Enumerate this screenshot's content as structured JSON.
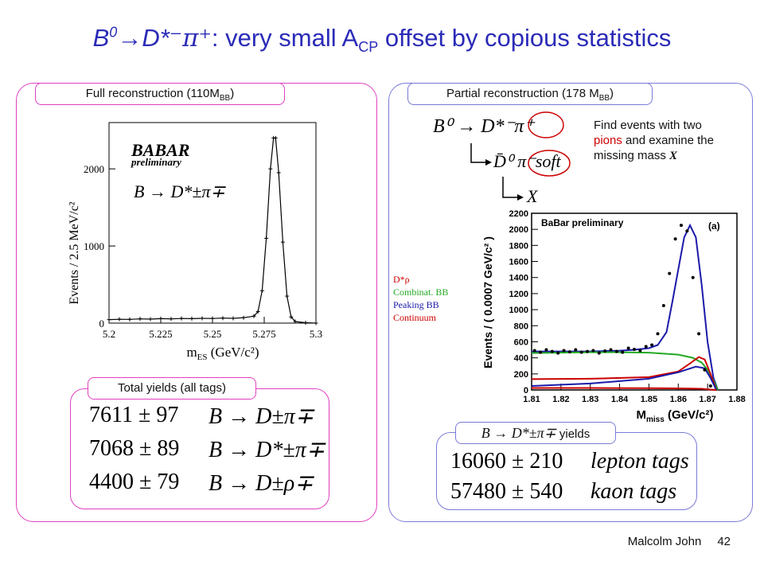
{
  "title": {
    "prefix": "B",
    "prefix_sup": "0",
    "arrow": "→D*",
    "pions": "⁻π⁺",
    "rest": ": very small A",
    "sub": "CP",
    "tail": " offset by copious statistics"
  },
  "left_panel": {
    "tab": "Full reconstruction (110M",
    "tab_sub": "BB",
    "tab_end": ")",
    "chart": {
      "chart_data": {
        "type": "line",
        "xlabel": "m",
        "xlabel_sub": "ES",
        "xlabel_unit": " (GeV/c²)",
        "ylabel": "Events / 2.5 MeV/c²",
        "xlim": [
          5.2,
          5.3
        ],
        "ylim": [
          0,
          2600
        ],
        "xticks": [
          "5.2",
          "5.225",
          "5.25",
          "5.275",
          "5.3"
        ],
        "yticks": [
          "0",
          "1000",
          "2000"
        ],
        "x": [
          5.2,
          5.205,
          5.21,
          5.215,
          5.22,
          5.225,
          5.23,
          5.235,
          5.24,
          5.245,
          5.25,
          5.255,
          5.26,
          5.265,
          5.27,
          5.272,
          5.274,
          5.276,
          5.278,
          5.2795,
          5.2805,
          5.282,
          5.284,
          5.286,
          5.288,
          5.29,
          5.295,
          5.3
        ],
        "y": [
          45,
          50,
          48,
          55,
          52,
          58,
          55,
          60,
          58,
          62,
          60,
          65,
          62,
          70,
          90,
          150,
          420,
          1100,
          2000,
          2400,
          2400,
          1950,
          1050,
          350,
          80,
          20,
          5,
          0
        ]
      },
      "logo": "BABAR",
      "logo_sub": "preliminary",
      "decay": "B → D*±π∓"
    }
  },
  "left_yields": {
    "tab": "Total yields (all tags)",
    "rows": [
      {
        "value": "7611 ± 97",
        "decay": "B → D±π∓"
      },
      {
        "value": "7068 ± 89",
        "decay": "B → D*±π∓"
      },
      {
        "value": "4400 ± 79",
        "decay": "B → D±ρ∓"
      }
    ]
  },
  "right_panel": {
    "tab": "Partial reconstruction (178 M",
    "tab_sub": "BB",
    "tab_end": ")",
    "decay_chain": {
      "line1": "B⁰ → D*⁻π⁺",
      "line2": "D̄⁰ π⁻soft",
      "line3": "X"
    },
    "note_pre": "Find events with two ",
    "note_pions": "pions",
    "note_post": " and examine the missing mass ",
    "note_x": "X",
    "legend": [
      {
        "label": "D*ρ",
        "color": "#cc0000"
      },
      {
        "label": "Combinat. BB",
        "color": "#22aa22"
      },
      {
        "label": "Peaking BB",
        "color": "#1a1aaa"
      },
      {
        "label": "Continuum",
        "color": "#cc0000"
      }
    ],
    "chart": {
      "chart_data": {
        "type": "line",
        "title": "BaBar preliminary",
        "panel_label": "(a)",
        "xlabel": "M",
        "xlabel_sub": "miss",
        "xlabel_unit": " (GeV/c²)",
        "ylabel": "Events / ( 0.0007 GeV/c² )",
        "xlim": [
          1.81,
          1.88
        ],
        "ylim": [
          0,
          2200
        ],
        "xticks": [
          "1.81",
          "1.82",
          "1.83",
          "1.84",
          "1.85",
          "1.86",
          "1.87",
          "1.88"
        ],
        "yticks": [
          "0",
          "200",
          "400",
          "600",
          "800",
          "1000",
          "1200",
          "1400",
          "1600",
          "1800",
          "2000",
          "2200"
        ],
        "series": [
          {
            "color": "#1a1aaa",
            "x": [
              1.81,
              1.82,
              1.83,
              1.84,
              1.845,
              1.85,
              1.853,
              1.856,
              1.858,
              1.86,
              1.862,
              1.864,
              1.866,
              1.868,
              1.87,
              1.872,
              1.8735
            ],
            "y": [
              480,
              480,
              480,
              490,
              500,
              520,
              560,
              720,
              1100,
              1500,
              1900,
              2050,
              1900,
              1300,
              600,
              150,
              0
            ]
          },
          {
            "color": "#22aa22",
            "x": [
              1.81,
              1.82,
              1.83,
              1.84,
              1.85,
              1.86,
              1.865,
              1.868,
              1.87,
              1.872,
              1.8735
            ],
            "y": [
              460,
              465,
              470,
              470,
              465,
              440,
              400,
              340,
              250,
              120,
              0
            ]
          },
          {
            "color": "#cc0000",
            "x": [
              1.81,
              1.83,
              1.85,
              1.86,
              1.864,
              1.867,
              1.869,
              1.871,
              1.873
            ],
            "y": [
              135,
              140,
              160,
              230,
              330,
              410,
              380,
              200,
              0
            ]
          },
          {
            "color": "#1a1aaa",
            "x": [
              1.81,
              1.83,
              1.85,
              1.86,
              1.866,
              1.869,
              1.871,
              1.873
            ],
            "y": [
              50,
              80,
              140,
              220,
              290,
              270,
              150,
              0
            ]
          },
          {
            "color": "#cc0000",
            "x": [
              1.81,
              1.83,
              1.85,
              1.86,
              1.868,
              1.871,
              1.873
            ],
            "y": [
              25,
              25,
              22,
              20,
              15,
              5,
              0
            ]
          }
        ],
        "points_x": [
          1.811,
          1.813,
          1.815,
          1.817,
          1.819,
          1.821,
          1.823,
          1.825,
          1.827,
          1.829,
          1.831,
          1.833,
          1.835,
          1.837,
          1.839,
          1.841,
          1.843,
          1.845,
          1.847,
          1.849,
          1.851,
          1.853,
          1.855,
          1.857,
          1.859,
          1.861,
          1.863,
          1.865,
          1.867,
          1.869,
          1.871
        ],
        "points_y": [
          490,
          470,
          500,
          480,
          460,
          490,
          475,
          500,
          470,
          480,
          490,
          460,
          485,
          500,
          480,
          470,
          520,
          505,
          490,
          540,
          560,
          700,
          1050,
          1450,
          1880,
          2050,
          1980,
          1400,
          700,
          250,
          50
        ]
      }
    }
  },
  "right_yields": {
    "tab_decay": "B → D*±π∓",
    "tab_word": " yields",
    "rows": [
      {
        "value": "16060 ± 210",
        "tag": "lepton tags"
      },
      {
        "value": "57480 ± 540",
        "tag": "kaon tags"
      }
    ]
  },
  "footer": {
    "author": "Malcolm John",
    "page": "42"
  },
  "colors": {
    "title": "#2b2bb8",
    "left_border": "#e040c0",
    "right_border": "#7a7ad8",
    "pions": "#cc0000"
  }
}
